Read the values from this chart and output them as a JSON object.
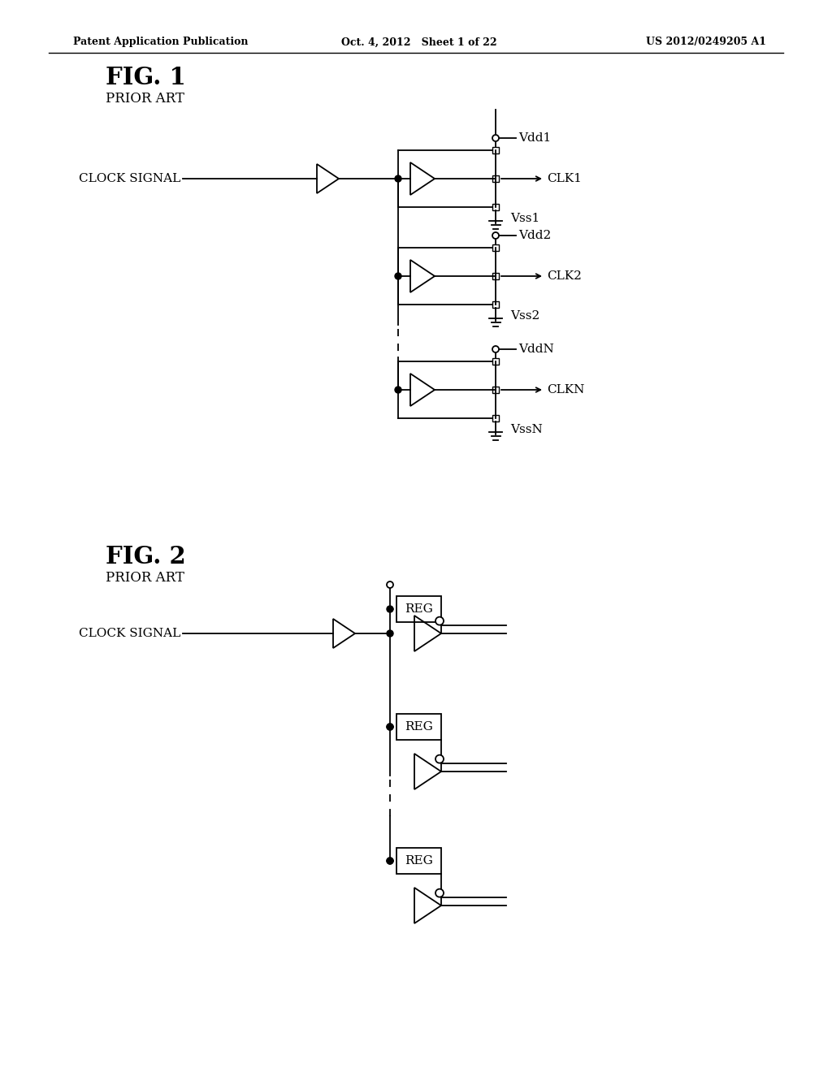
{
  "bg_color": "#ffffff",
  "header_left": "Patent Application Publication",
  "header_center": "Oct. 4, 2012   Sheet 1 of 22",
  "header_right": "US 2012/0249205 A1",
  "fig1_title": "FIG. 1",
  "fig1_subtitle": "PRIOR ART",
  "fig2_title": "FIG. 2",
  "fig2_subtitle": "PRIOR ART",
  "clock_signal_label": "CLOCK SIGNAL"
}
